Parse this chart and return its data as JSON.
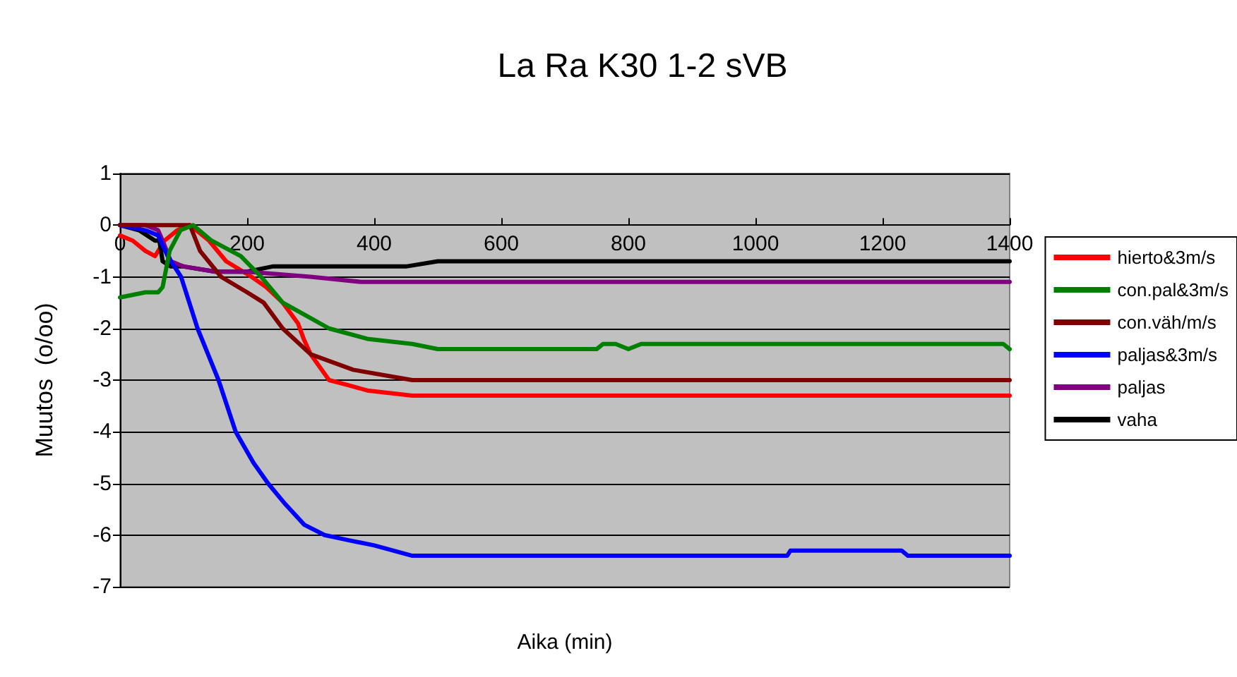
{
  "chart_data": {
    "type": "line",
    "title": "La Ra K30 1-2 sVB",
    "xlabel": "Aika (min)",
    "ylabel": "Muutos  (o/oo)",
    "xlim": [
      0,
      1400
    ],
    "xticks": [
      0,
      200,
      400,
      600,
      800,
      1000,
      1200,
      1400
    ],
    "ylim": [
      -7,
      1
    ],
    "yticks": [
      -7,
      -6,
      -5,
      -4,
      -3,
      -2,
      -1,
      0,
      1
    ],
    "grid": "y",
    "legend": "right",
    "marker": "none",
    "line_style": "solid",
    "series": [
      {
        "name": "hierto&3m/s",
        "color": "#ff0000",
        "x": [
          0,
          20,
          40,
          55,
          70,
          90,
          110,
          140,
          167,
          207,
          230,
          256,
          280,
          289,
          300,
          329,
          360,
          389,
          460,
          1050,
          1060,
          1070,
          1400
        ],
        "values": [
          -0.2,
          -0.3,
          -0.5,
          -0.6,
          -0.3,
          -0.1,
          0,
          -0.3,
          -0.7,
          -1,
          -1.2,
          -1.5,
          -1.9,
          -2.2,
          -2.5,
          -3,
          -3.1,
          -3.2,
          -3.3,
          -3.3,
          -3.3,
          -3.3,
          -3.3
        ]
      },
      {
        "name": "con.pal&3m/s",
        "color": "#008000",
        "x": [
          0,
          40,
          60,
          67,
          78,
          95,
          115,
          144,
          190,
          222,
          256,
          300,
          329,
          389,
          460,
          500,
          750,
          760,
          780,
          800,
          820,
          1390,
          1400
        ],
        "values": [
          -1.4,
          -1.3,
          -1.3,
          -1.2,
          -0.5,
          -0.1,
          0,
          -0.3,
          -0.6,
          -1,
          -1.5,
          -1.8,
          -2,
          -2.2,
          -2.3,
          -2.4,
          -2.4,
          -2.3,
          -2.3,
          -2.4,
          -2.3,
          -2.3,
          -2.4
        ]
      },
      {
        "name": "con.väh/m/s",
        "color": "#800000",
        "x": [
          0,
          50,
          70,
          89,
          110,
          126,
          159,
          200,
          226,
          256,
          300,
          367,
          460,
          1400
        ],
        "values": [
          0,
          0,
          0,
          0,
          0,
          -0.5,
          -1,
          -1.3,
          -1.5,
          -2,
          -2.5,
          -2.8,
          -3,
          -3
        ]
      },
      {
        "name": "paljas&3m/s",
        "color": "#0000ff",
        "x": [
          0,
          40,
          60,
          75,
          96,
          122,
          155,
          182,
          210,
          233,
          260,
          290,
          322,
          360,
          400,
          460,
          1050,
          1055,
          1230,
          1240,
          1400
        ],
        "values": [
          0,
          -0.1,
          -0.2,
          -0.6,
          -1,
          -2,
          -3,
          -4,
          -4.6,
          -5,
          -5.4,
          -5.8,
          -6,
          -6.1,
          -6.2,
          -6.4,
          -6.4,
          -6.3,
          -6.3,
          -6.4,
          -6.4
        ]
      },
      {
        "name": "paljas",
        "color": "#800080",
        "x": [
          0,
          40,
          60,
          67,
          80,
          100,
          150,
          200,
          300,
          380,
          1400
        ],
        "values": [
          0,
          0,
          -0.1,
          -0.3,
          -0.7,
          -0.8,
          -0.9,
          -0.9,
          -1,
          -1.1,
          -1.1
        ]
      },
      {
        "name": "vaha",
        "color": "#000000",
        "x": [
          0,
          30,
          55,
          62,
          67,
          80,
          100,
          150,
          200,
          240,
          250,
          260,
          300,
          400,
          450,
          500,
          800,
          1400
        ],
        "values": [
          0,
          -0.1,
          -0.3,
          -0.3,
          -0.7,
          -0.8,
          -0.8,
          -0.9,
          -0.9,
          -0.8,
          -0.8,
          -0.8,
          -0.8,
          -0.8,
          -0.8,
          -0.7,
          -0.7,
          -0.7
        ]
      }
    ]
  }
}
